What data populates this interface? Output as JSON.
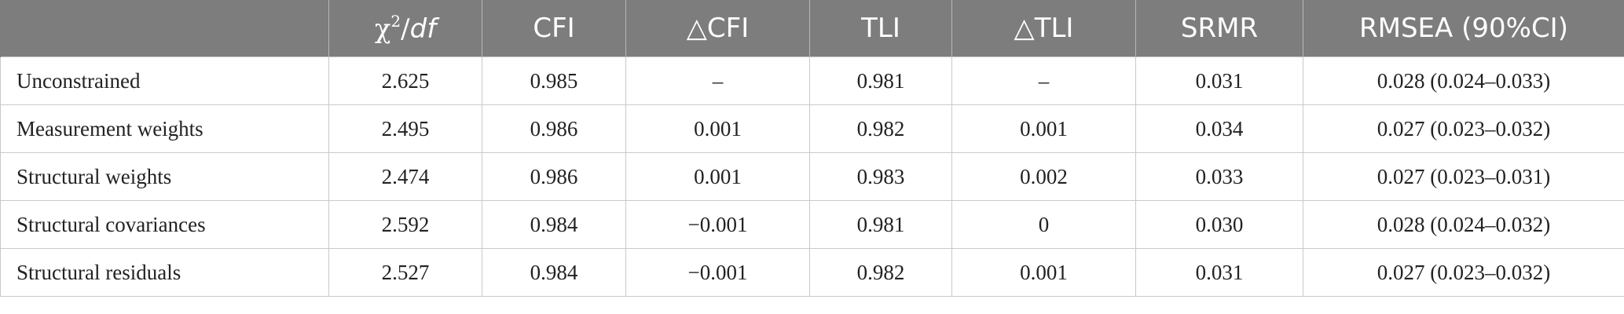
{
  "table": {
    "headers": {
      "chi_symbol": "χ",
      "chi_sup": "2",
      "chi_slash": "/",
      "chi_df": "df",
      "cfi": "CFI",
      "delta_cfi_symbol": "△",
      "delta_cfi_text": "CFI",
      "tli": "TLI",
      "delta_tli_symbol": "△",
      "delta_tli_text": "TLI",
      "srmr": "SRMR",
      "rmsea": "RMSEA (90%CI)"
    },
    "rows": [
      {
        "model": "Unconstrained",
        "chi_df": "2.625",
        "cfi": "0.985",
        "delta_cfi": "–",
        "tli": "0.981",
        "delta_tli": "–",
        "srmr": "0.031",
        "rmsea": "0.028 (0.024–0.033)"
      },
      {
        "model": "Measurement weights",
        "chi_df": "2.495",
        "cfi": "0.986",
        "delta_cfi": "0.001",
        "tli": "0.982",
        "delta_tli": "0.001",
        "srmr": "0.034",
        "rmsea": "0.027 (0.023–0.032)"
      },
      {
        "model": "Structural weights",
        "chi_df": "2.474",
        "cfi": "0.986",
        "delta_cfi": "0.001",
        "tli": "0.983",
        "delta_tli": "0.002",
        "srmr": "0.033",
        "rmsea": "0.027 (0.023–0.031)"
      },
      {
        "model": "Structural covariances",
        "chi_df": "2.592",
        "cfi": "0.984",
        "delta_cfi": "−0.001",
        "tli": "0.981",
        "delta_tli": "0",
        "srmr": "0.030",
        "rmsea": "0.028 (0.024–0.032)"
      },
      {
        "model": "Structural residuals",
        "chi_df": "2.527",
        "cfi": "0.984",
        "delta_cfi": "−0.001",
        "tli": "0.982",
        "delta_tli": "0.001",
        "srmr": "0.031",
        "rmsea": "0.027 (0.023–0.032)"
      }
    ]
  }
}
